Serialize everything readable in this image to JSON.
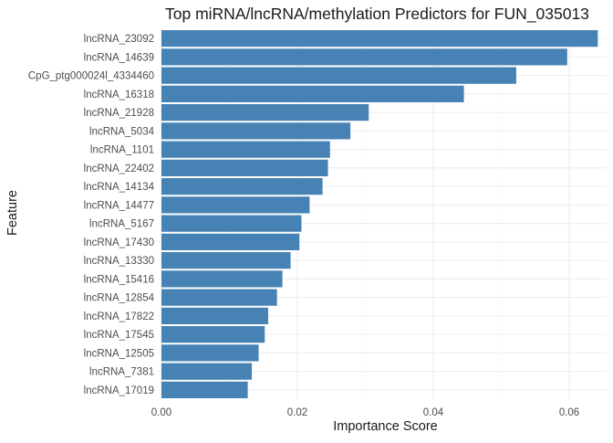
{
  "chart_data": {
    "type": "bar",
    "orientation": "horizontal",
    "title": "Top miRNA/lncRNA/methylation Predictors for FUN_035013",
    "xlabel": "Importance Score",
    "ylabel": "Feature",
    "xlim": [
      -0.0004,
      0.0655
    ],
    "xticks": [
      0.0,
      0.02,
      0.04,
      0.06
    ],
    "xtick_labels": [
      "0.00",
      "0.02",
      "0.04",
      "0.06"
    ],
    "bar_color": "#4682B4",
    "grid": true,
    "legend": "none",
    "categories": [
      "lncRNA_23092",
      "lncRNA_14639",
      "CpG_ptg000024l_4334460",
      "lncRNA_16318",
      "lncRNA_21928",
      "lncRNA_5034",
      "lncRNA_1101",
      "lncRNA_22402",
      "lncRNA_14134",
      "lncRNA_14477",
      "lncRNA_5167",
      "lncRNA_17430",
      "lncRNA_13330",
      "lncRNA_15416",
      "lncRNA_12854",
      "lncRNA_17822",
      "lncRNA_17545",
      "lncRNA_12505",
      "lncRNA_7381",
      "lncRNA_17019"
    ],
    "values": [
      0.0642,
      0.0597,
      0.0522,
      0.0445,
      0.0305,
      0.0278,
      0.0248,
      0.0245,
      0.0237,
      0.0218,
      0.0206,
      0.0203,
      0.019,
      0.0178,
      0.017,
      0.0157,
      0.0152,
      0.0143,
      0.0133,
      0.0127
    ]
  }
}
